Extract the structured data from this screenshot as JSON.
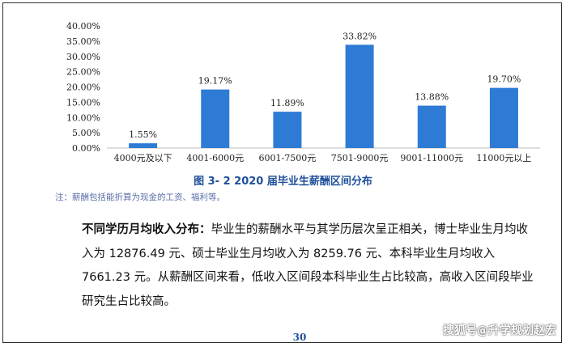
{
  "chart_data": {
    "type": "bar",
    "categories": [
      "4000元及以下",
      "4001-6000元",
      "6001-7500元",
      "7501-9000元",
      "9001-11000元",
      "11000元以上"
    ],
    "values": [
      1.55,
      19.17,
      11.89,
      33.82,
      13.88,
      19.7
    ],
    "value_labels": [
      "1.55%",
      "19.17%",
      "11.89%",
      "33.82%",
      "13.88%",
      "19.70%"
    ],
    "ylim": [
      0,
      40
    ],
    "yticks": [
      "0.00%",
      "5.00%",
      "10.00%",
      "15.00%",
      "20.00%",
      "25.00%",
      "30.00%",
      "35.00%",
      "40.00%"
    ],
    "bar_color": "#2e7bd6",
    "grid": false
  },
  "document": {
    "caption": "图 3- 2    2020 届毕业生薪酬区间分布",
    "note": "注：薪酬包括能折算为现金的工资、福利等。",
    "para_lead": "不同学历月均收入分布：",
    "para_body": "毕业生的薪酬水平与其学历层次呈正相关，博士毕业生月均收入为 12876.49 元、硕士毕业生月均收入为 8259.76 元、本科毕业生月均收入 7661.23 元。从薪酬区间来看，低收入区间段本科毕业生占比较高，高收入区间段毕业研究生占比较高。",
    "page_number": "30"
  },
  "watermark": "搜狐号@升学规划赵宏"
}
